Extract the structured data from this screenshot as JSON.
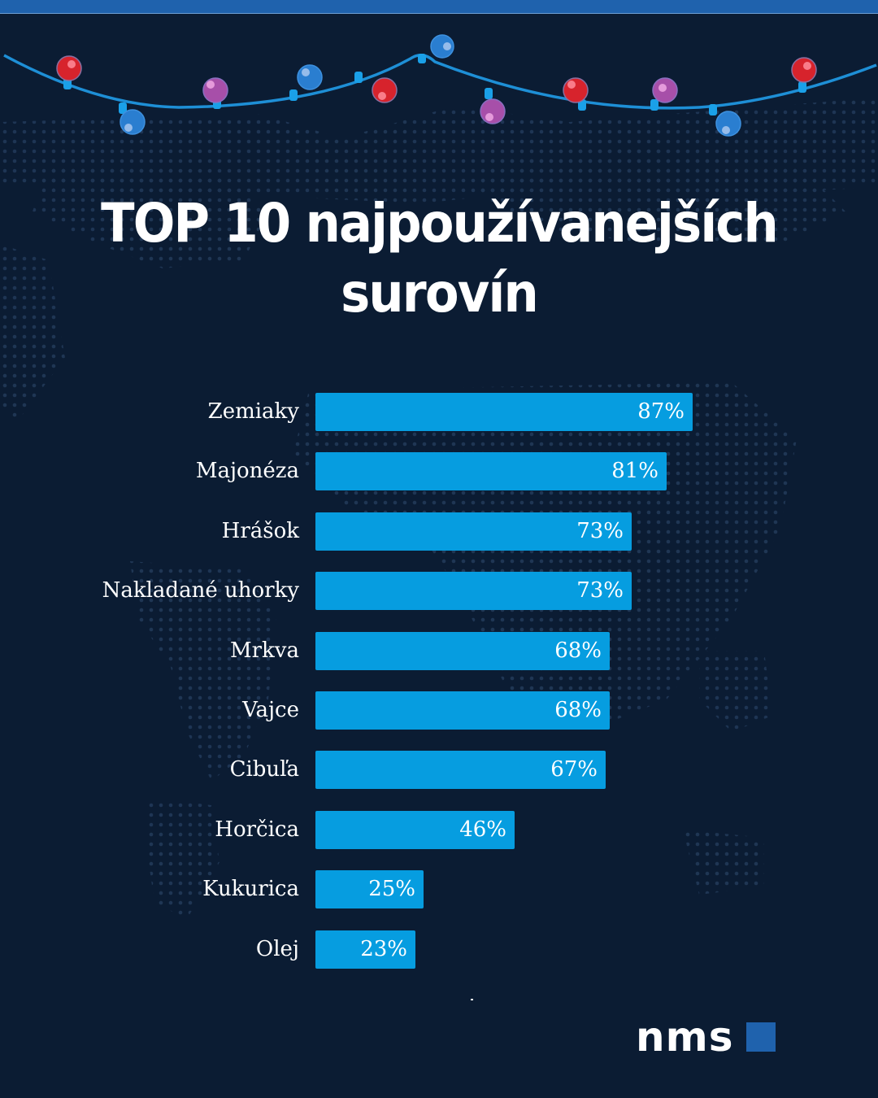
{
  "header": {
    "title_line1": "TOP 10 najpoužívanejších",
    "title_line2": "surovín"
  },
  "colors": {
    "background": "#0b1c33",
    "bar": "#069de0",
    "top_bar": "#1f62ad",
    "logo_square": "#1f62ad"
  },
  "brand": {
    "logo_text": "nms"
  },
  "chart_data": {
    "type": "bar",
    "orientation": "horizontal",
    "title": "TOP 10 najpoužívanejších surovín",
    "xlabel": "",
    "ylabel": "",
    "categories": [
      "Zemiaky",
      "Majonéza",
      "Hrášok",
      "Nakladané uhorky",
      "Mrkva",
      "Vajce",
      "Cibuľa",
      "Horčica",
      "Kukurica",
      "Olej"
    ],
    "values": [
      87,
      81,
      73,
      73,
      68,
      68,
      67,
      46,
      25,
      23
    ],
    "value_labels": [
      "87%",
      "81%",
      "73%",
      "73%",
      "68%",
      "68%",
      "67%",
      "46%",
      "25%",
      "23%"
    ],
    "unit": "%",
    "grid": false,
    "legend": "none"
  }
}
